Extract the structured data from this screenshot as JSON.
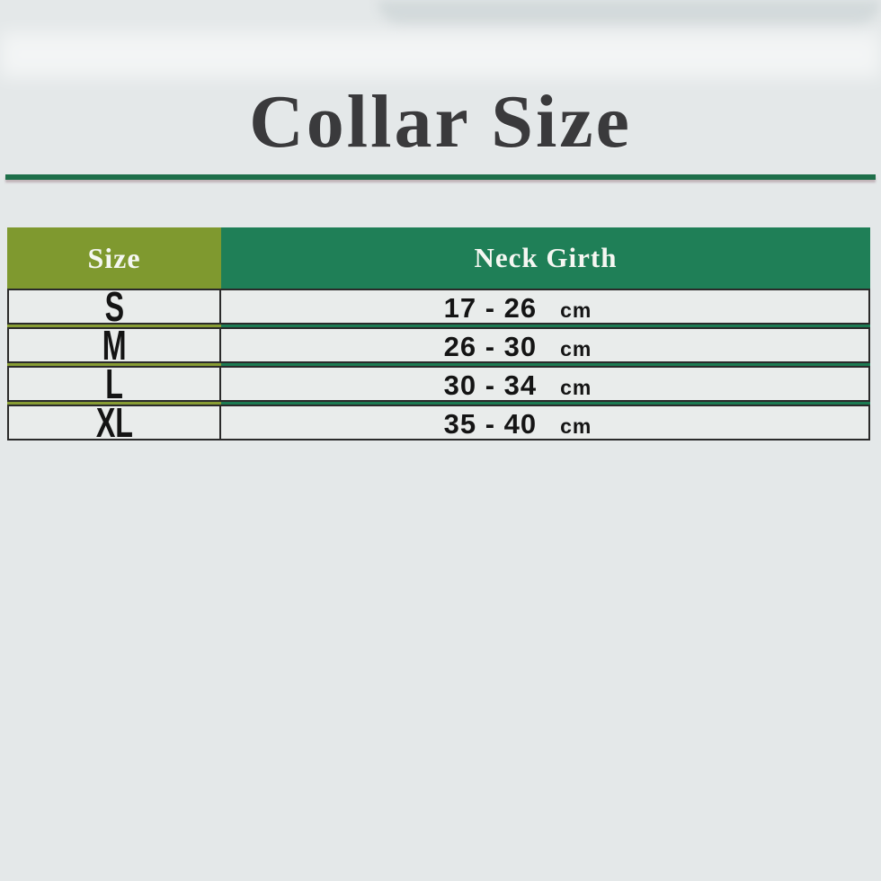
{
  "title": "Collar Size",
  "colors": {
    "background": "#e4e8e9",
    "divider_green": "#1e6f4a",
    "header_olive": "#7f992f",
    "header_green": "#1f7f57",
    "row_background": "#e9eceb",
    "title_color": "#3a3a3c",
    "header_text": "#f5f7f2",
    "cell_text": "#141414"
  },
  "table": {
    "header": {
      "size": "Size",
      "neck_girth": "Neck Girth"
    },
    "rows": [
      {
        "size": "S",
        "range": "17 - 26",
        "unit": "cm"
      },
      {
        "size": "M",
        "range": "26 - 30",
        "unit": "cm"
      },
      {
        "size": "L",
        "range": "30 - 34",
        "unit": "cm"
      },
      {
        "size": "XL",
        "range": "35 - 40",
        "unit": "cm"
      }
    ]
  },
  "chart_data": {
    "type": "table",
    "title": "Collar Size",
    "columns": [
      "Size",
      "Neck Girth"
    ],
    "rows": [
      [
        "S",
        "17 - 26 cm"
      ],
      [
        "M",
        "26 - 30 cm"
      ],
      [
        "L",
        "30 - 34 cm"
      ],
      [
        "XL",
        "35 - 40 cm"
      ]
    ],
    "unit": "cm"
  }
}
